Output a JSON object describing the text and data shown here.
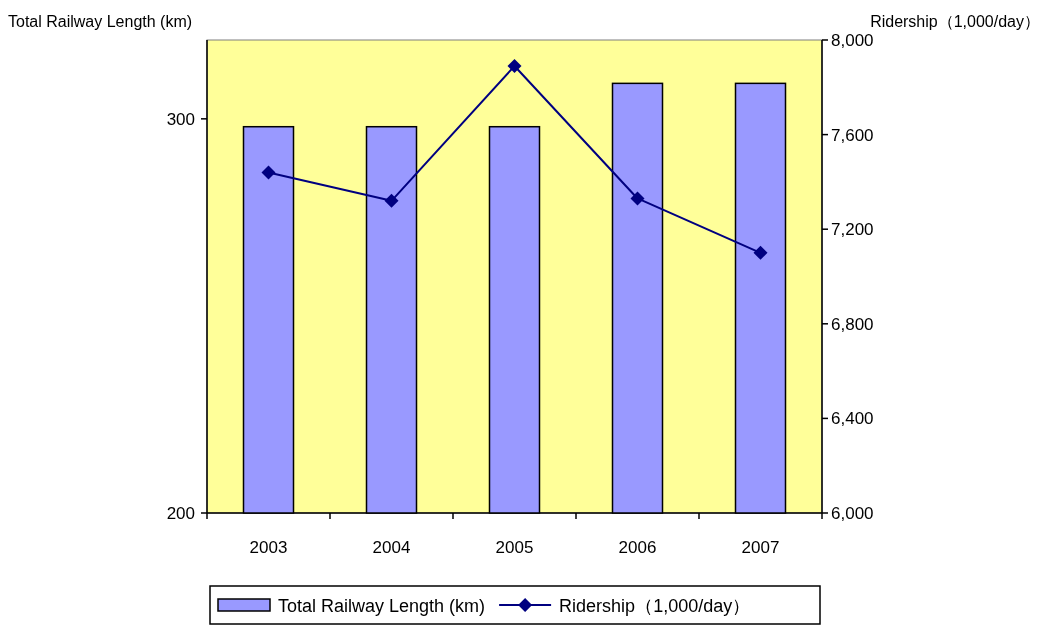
{
  "chart_data": {
    "type": "bar",
    "ylabel": "Total Railway Length (km)",
    "y2label": "Ridership（1,000/day）",
    "categories": [
      "2003",
      "2004",
      "2005",
      "2006",
      "2007"
    ],
    "series": [
      {
        "name": "Total Railway Length (km)",
        "color": "#9999ff",
        "values": [
          298,
          298,
          298,
          309,
          309
        ]
      },
      {
        "name": "Ridership（1,000/day）",
        "type": "line",
        "axis": "y2",
        "color": "#000080",
        "marker": "diamond",
        "values": [
          7440,
          7320,
          7890,
          7330,
          7100
        ]
      }
    ],
    "ylim": [
      200,
      320
    ],
    "yticks": [
      200,
      300
    ],
    "y2lim": [
      6000,
      8000
    ],
    "y2ticks": [
      {
        "value": 6000,
        "label": "6,000"
      },
      {
        "value": 6400,
        "label": "6,400"
      },
      {
        "value": 6800,
        "label": "6,800"
      },
      {
        "value": 7200,
        "label": "7,200"
      },
      {
        "value": 7600,
        "label": "7,600"
      },
      {
        "value": 8000,
        "label": "8,000"
      }
    ],
    "legend": "bottom"
  }
}
